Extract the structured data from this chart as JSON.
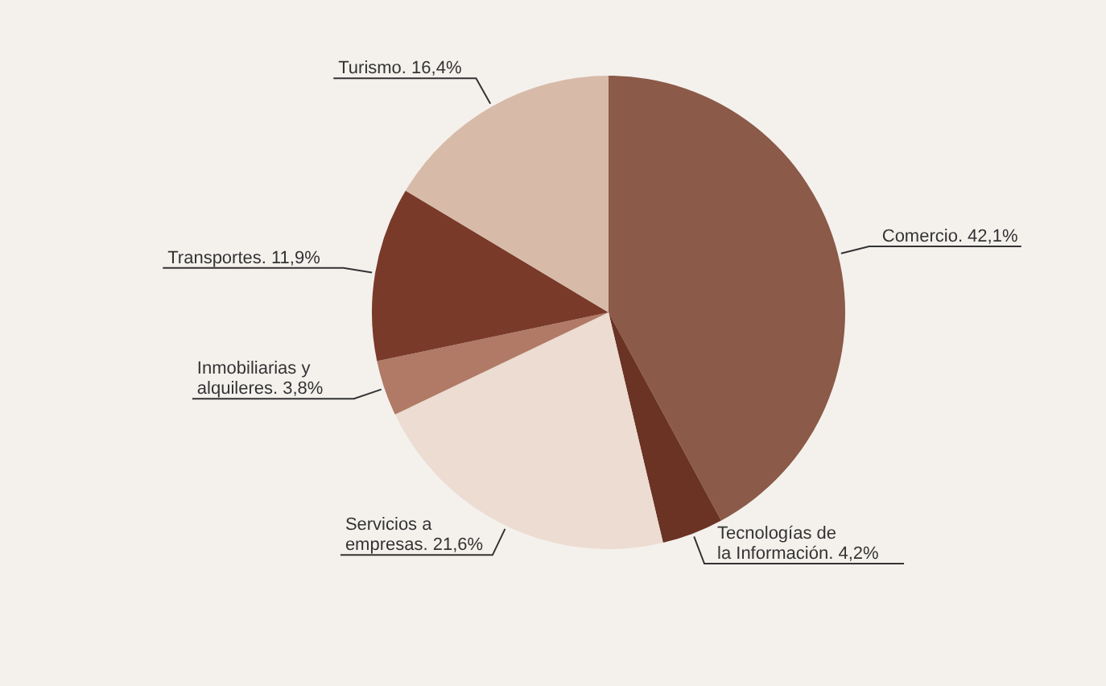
{
  "chart_data": {
    "type": "pie",
    "categories": [
      "Comercio.",
      "Tecnologías de la Información.",
      "Servicios a empresas.",
      "Inmobiliarias y alquileres.",
      "Transportes.",
      "Turismo."
    ],
    "values": [
      42.1,
      4.2,
      21.6,
      3.8,
      11.9,
      16.4
    ],
    "value_labels": [
      "42,1%",
      "4,2%",
      "21,6%",
      "3,8%",
      "11,9%",
      "16,4%"
    ],
    "colors": [
      "#8b5a48",
      "#6b3324",
      "#ecdcd2",
      "#b07a66",
      "#7a3a2a",
      "#d8baa8"
    ]
  }
}
